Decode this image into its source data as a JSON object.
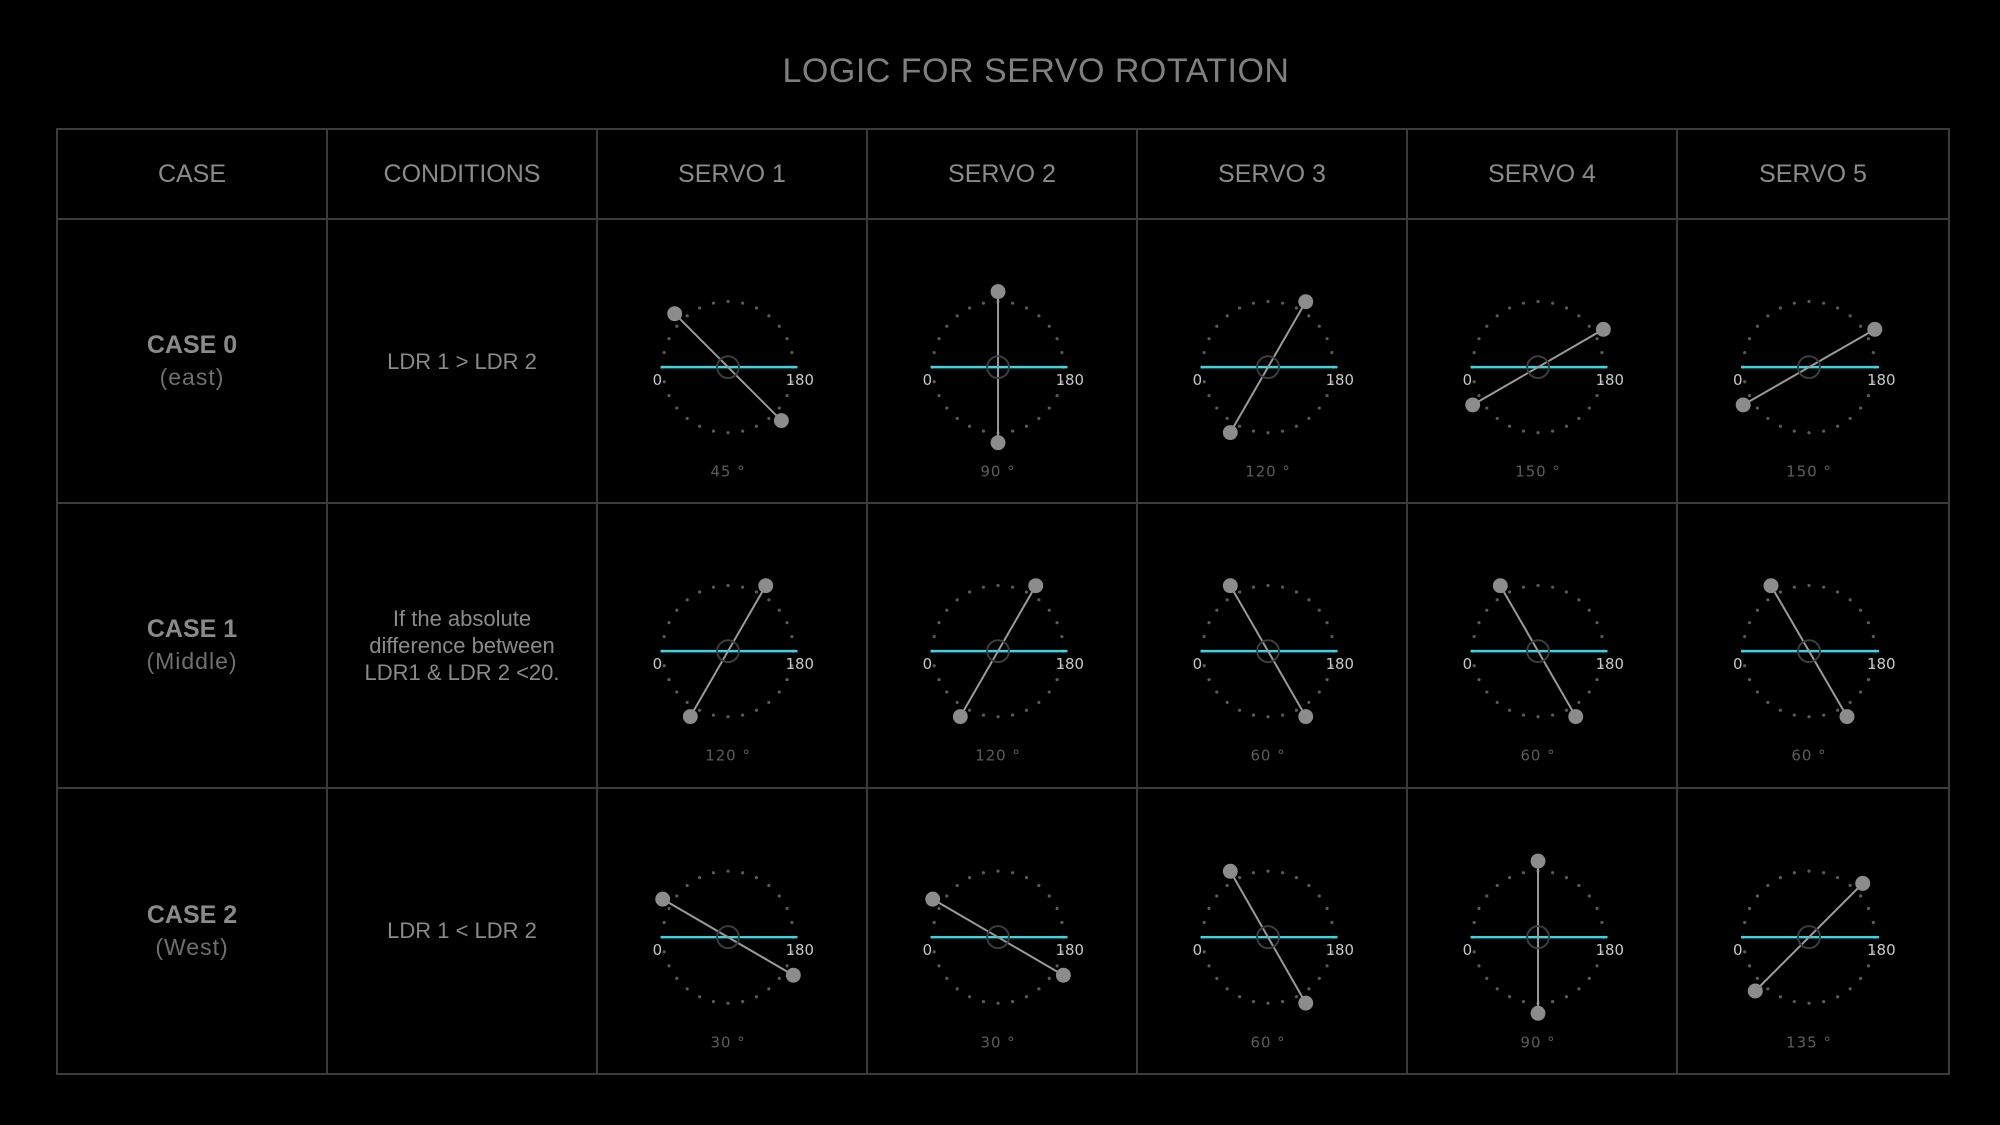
{
  "title": "LOGIC FOR SERVO ROTATION",
  "headers": [
    "CASE",
    "CONDITIONS",
    "SERVO 1",
    "SERVO 2",
    "SERVO 3",
    "SERVO 4",
    "SERVO 5"
  ],
  "colors": {
    "baseline": "#3fd1dc",
    "arm": "#9a9a9a",
    "knob": "#8c8c8c",
    "dots": "#5a5a5a",
    "grid": "#3b3b3b",
    "background": "#000000"
  },
  "scale": {
    "min_label": "0",
    "max_label": "180"
  },
  "rows": [
    {
      "case": "CASE 0",
      "sub": "(east)",
      "condition": "LDR 1 > LDR 2",
      "servos": [
        {
          "angle": 45,
          "label": "45 °"
        },
        {
          "angle": 90,
          "label": "90 °"
        },
        {
          "angle": 120,
          "label": "120 °"
        },
        {
          "angle": 150,
          "label": "150 °"
        },
        {
          "angle": 150,
          "label": "150 °"
        }
      ]
    },
    {
      "case": "CASE 1",
      "sub": "(Middle)",
      "condition": "If the absolute difference between  LDR1 & LDR 2 <20.",
      "servos": [
        {
          "angle": 120,
          "label": "120 °"
        },
        {
          "angle": 120,
          "label": "120 °"
        },
        {
          "angle": 60,
          "label": "60 °"
        },
        {
          "angle": 60,
          "label": "60 °"
        },
        {
          "angle": 60,
          "label": "60 °"
        }
      ]
    },
    {
      "case": "CASE 2",
      "sub": "(West)",
      "condition": "LDR 1 < LDR 2",
      "servos": [
        {
          "angle": 30,
          "label": "30 °"
        },
        {
          "angle": 30,
          "label": "30 °"
        },
        {
          "angle": 60,
          "label": "60 °"
        },
        {
          "angle": 90,
          "label": "90 °"
        },
        {
          "angle": 135,
          "label": "135 °"
        }
      ]
    }
  ]
}
